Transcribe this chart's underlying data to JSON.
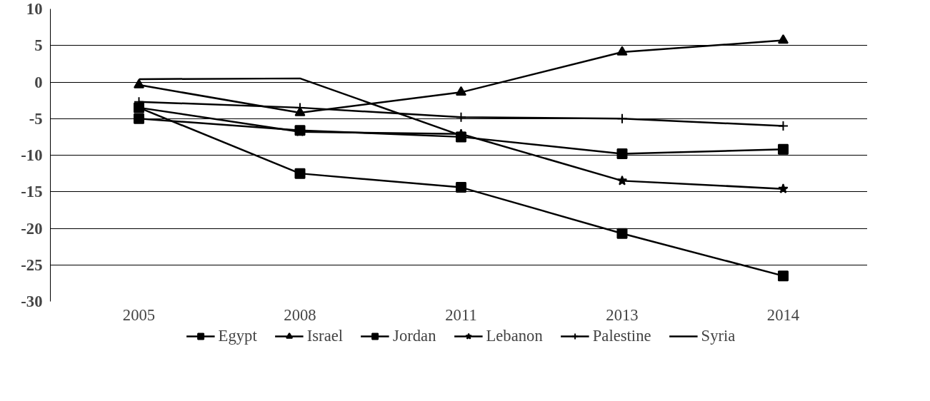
{
  "chart_data": {
    "type": "line",
    "categories": [
      "2005",
      "2008",
      "2011",
      "2013",
      "2014"
    ],
    "ylim": [
      -30,
      10
    ],
    "yticks": [
      -30,
      -25,
      -20,
      -15,
      -10,
      -5,
      0,
      5,
      10
    ],
    "grid": "y",
    "legend": "bottom",
    "line_style": "solid",
    "series": [
      {
        "name": "Egypt",
        "color": "#000000",
        "marker": "square",
        "values": [
          -5,
          -6.6,
          -7.5,
          -9.8,
          -9.2
        ]
      },
      {
        "name": "Israel",
        "color": "#000000",
        "marker": "triangle",
        "values": [
          -0.4,
          -4.2,
          -1.4,
          4.1,
          5.7
        ]
      },
      {
        "name": "Jordan",
        "color": "#000000",
        "marker": "square",
        "values": [
          -3.5,
          -12.5,
          -14.4,
          -20.7,
          -26.5
        ]
      },
      {
        "name": "Lebanon",
        "color": "#000000",
        "marker": "star",
        "values": [
          -3.5,
          -6.8,
          -7.1,
          -13.5,
          -14.6
        ]
      },
      {
        "name": "Palestine",
        "color": "#000000",
        "marker": "cross",
        "values": [
          -2.7,
          -3.5,
          -4.8,
          -5.0,
          -6.0
        ]
      },
      {
        "name": "Syria",
        "color": "#000000",
        "marker": "none",
        "values": [
          0.4,
          0.5,
          -7.3,
          null,
          null
        ]
      }
    ]
  }
}
